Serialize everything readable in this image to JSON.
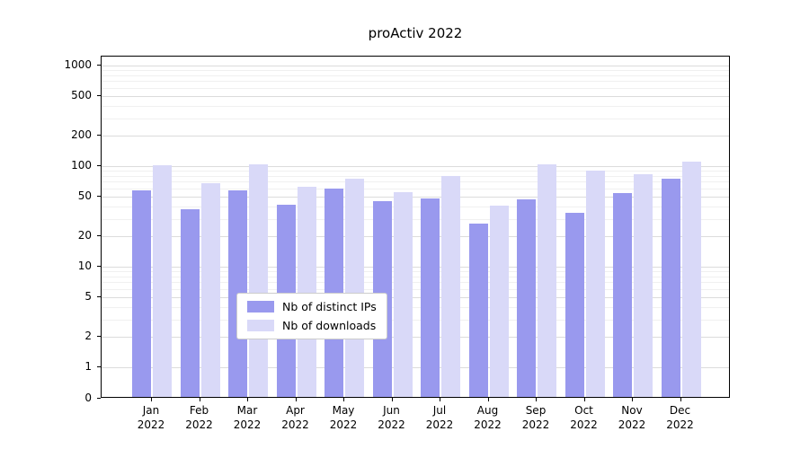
{
  "chart_data": {
    "type": "bar",
    "title": "proActiv 2022",
    "y_scale": "symlog",
    "grid": true,
    "ylim": [
      0,
      1000
    ],
    "yticks": [
      0,
      1,
      2,
      5,
      10,
      20,
      50,
      100,
      200,
      500,
      1000
    ],
    "categories": [
      "Jan",
      "Feb",
      "Mar",
      "Apr",
      "May",
      "Jun",
      "Jul",
      "Aug",
      "Sep",
      "Oct",
      "Nov",
      "Dec"
    ],
    "year_label": "2022",
    "legend_position": "lower center",
    "series": [
      {
        "name": "Nb of distinct IPs",
        "color": "#9999ee",
        "values": [
          55,
          36,
          55,
          40,
          58,
          43,
          46,
          26,
          45,
          33,
          52,
          72
        ]
      },
      {
        "name": "Nb of downloads",
        "color": "#d9d9f8",
        "values": [
          97,
          65,
          100,
          60,
          72,
          53,
          76,
          39,
          100,
          87,
          79,
          107
        ]
      }
    ]
  }
}
